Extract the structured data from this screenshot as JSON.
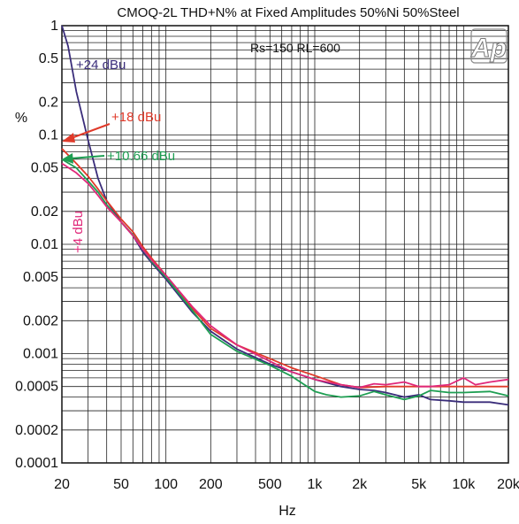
{
  "chart_data": {
    "type": "line",
    "title": "CMOQ-2L  THD+N% at Fixed Amplitudes  50%Ni 50%Steel",
    "conditions_text": "Rs=150  RL=600",
    "logo_text": "Ap",
    "xlabel": "Hz",
    "ylabel": "%",
    "x_scale": "log",
    "y_scale": "log",
    "xlim": [
      20,
      20000
    ],
    "ylim": [
      0.0001,
      1
    ],
    "grid": true,
    "x_ticks": [
      {
        "value": 20,
        "label": "20"
      },
      {
        "value": 50,
        "label": "50"
      },
      {
        "value": 100,
        "label": "100"
      },
      {
        "value": 200,
        "label": "200"
      },
      {
        "value": 500,
        "label": "500"
      },
      {
        "value": 1000,
        "label": "1k"
      },
      {
        "value": 2000,
        "label": "2k"
      },
      {
        "value": 5000,
        "label": "5k"
      },
      {
        "value": 10000,
        "label": "10k"
      },
      {
        "value": 20000,
        "label": "20k"
      }
    ],
    "y_ticks": [
      {
        "value": 1,
        "label": "1"
      },
      {
        "value": 0.5,
        "label": "0.5"
      },
      {
        "value": 0.2,
        "label": "0.2"
      },
      {
        "value": 0.1,
        "label": "0.1"
      },
      {
        "value": 0.05,
        "label": "0.05"
      },
      {
        "value": 0.02,
        "label": "0.02"
      },
      {
        "value": 0.01,
        "label": "0.01"
      },
      {
        "value": 0.005,
        "label": "0.005"
      },
      {
        "value": 0.002,
        "label": "0.002"
      },
      {
        "value": 0.001,
        "label": "0.001"
      },
      {
        "value": 0.0005,
        "label": "0.0005"
      },
      {
        "value": 0.0002,
        "label": "0.0002"
      },
      {
        "value": 0.0001,
        "label": "0.0001"
      }
    ],
    "series": [
      {
        "name": "+24 dBu",
        "color": "#3a2d7a",
        "points": [
          [
            20,
            1.0
          ],
          [
            22,
            0.65
          ],
          [
            25,
            0.25
          ],
          [
            30,
            0.09
          ],
          [
            35,
            0.04
          ],
          [
            40,
            0.025
          ],
          [
            50,
            0.016
          ],
          [
            60,
            0.012
          ],
          [
            70,
            0.0085
          ],
          [
            80,
            0.0068
          ],
          [
            100,
            0.0048
          ],
          [
            150,
            0.0024
          ],
          [
            200,
            0.0016
          ],
          [
            300,
            0.0011
          ],
          [
            500,
            0.0008
          ],
          [
            700,
            0.00068
          ],
          [
            1000,
            0.00058
          ],
          [
            1500,
            0.0005
          ],
          [
            2000,
            0.00047
          ],
          [
            2500,
            0.00046
          ],
          [
            3000,
            0.00044
          ],
          [
            4000,
            0.0004
          ],
          [
            5000,
            0.00042
          ],
          [
            6000,
            0.00038
          ],
          [
            8000,
            0.00037
          ],
          [
            10000,
            0.00036
          ],
          [
            15000,
            0.00036
          ],
          [
            20000,
            0.00034
          ]
        ]
      },
      {
        "name": "+18 dBu",
        "color": "#e03a2a",
        "points": [
          [
            20,
            0.075
          ],
          [
            25,
            0.055
          ],
          [
            30,
            0.042
          ],
          [
            35,
            0.032
          ],
          [
            40,
            0.025
          ],
          [
            50,
            0.017
          ],
          [
            60,
            0.013
          ],
          [
            70,
            0.0095
          ],
          [
            80,
            0.0075
          ],
          [
            100,
            0.0052
          ],
          [
            150,
            0.0026
          ],
          [
            200,
            0.0017
          ],
          [
            300,
            0.0012
          ],
          [
            500,
            0.0009
          ],
          [
            700,
            0.00074
          ],
          [
            1000,
            0.00063
          ],
          [
            1500,
            0.00052
          ],
          [
            2000,
            0.00049
          ],
          [
            3000,
            0.0005
          ],
          [
            4000,
            0.0005
          ],
          [
            5000,
            0.0005
          ],
          [
            6000,
            0.0005
          ],
          [
            8000,
            0.0005
          ],
          [
            10000,
            0.0005
          ],
          [
            15000,
            0.0005
          ],
          [
            20000,
            0.0005
          ]
        ]
      },
      {
        "name": "+10.66 dBu",
        "color": "#1e9e52",
        "points": [
          [
            20,
            0.06
          ],
          [
            25,
            0.05
          ],
          [
            30,
            0.038
          ],
          [
            35,
            0.03
          ],
          [
            40,
            0.023
          ],
          [
            50,
            0.016
          ],
          [
            60,
            0.0122
          ],
          [
            70,
            0.009
          ],
          [
            80,
            0.007
          ],
          [
            100,
            0.005
          ],
          [
            150,
            0.0025
          ],
          [
            200,
            0.0015
          ],
          [
            300,
            0.00105
          ],
          [
            500,
            0.00078
          ],
          [
            700,
            0.00062
          ],
          [
            800,
            0.00055
          ],
          [
            1000,
            0.00045
          ],
          [
            1200,
            0.00042
          ],
          [
            1500,
            0.0004
          ],
          [
            2000,
            0.00041
          ],
          [
            2500,
            0.00045
          ],
          [
            3000,
            0.00042
          ],
          [
            4000,
            0.00038
          ],
          [
            5000,
            0.00041
          ],
          [
            6000,
            0.00046
          ],
          [
            8000,
            0.00044
          ],
          [
            10000,
            0.00044
          ],
          [
            15000,
            0.00045
          ],
          [
            20000,
            0.00041
          ]
        ]
      },
      {
        "name": "+4 dBu",
        "color": "#e0287a",
        "points": [
          [
            20,
            0.055
          ],
          [
            25,
            0.045
          ],
          [
            30,
            0.036
          ],
          [
            35,
            0.028
          ],
          [
            40,
            0.022
          ],
          [
            50,
            0.016
          ],
          [
            60,
            0.012
          ],
          [
            70,
            0.009
          ],
          [
            80,
            0.0072
          ],
          [
            100,
            0.0052
          ],
          [
            150,
            0.0027
          ],
          [
            200,
            0.0018
          ],
          [
            300,
            0.0012
          ],
          [
            500,
            0.00085
          ],
          [
            700,
            0.00068
          ],
          [
            1000,
            0.00058
          ],
          [
            1500,
            0.00052
          ],
          [
            2000,
            0.00049
          ],
          [
            2500,
            0.00053
          ],
          [
            3000,
            0.00052
          ],
          [
            4000,
            0.00055
          ],
          [
            5000,
            0.0005
          ],
          [
            6000,
            0.0005
          ],
          [
            8000,
            0.00052
          ],
          [
            10000,
            0.0006
          ],
          [
            12000,
            0.00052
          ],
          [
            15000,
            0.00055
          ],
          [
            20000,
            0.00058
          ]
        ]
      }
    ],
    "annotations": [
      {
        "text": "+24 dBu",
        "color": "#3a2d7a"
      },
      {
        "text": "+18 dBu",
        "color": "#e03a2a"
      },
      {
        "text": "+10.66 dBu",
        "color": "#1e9e52"
      },
      {
        "text": "+4 dBu",
        "color": "#e0287a"
      }
    ]
  }
}
